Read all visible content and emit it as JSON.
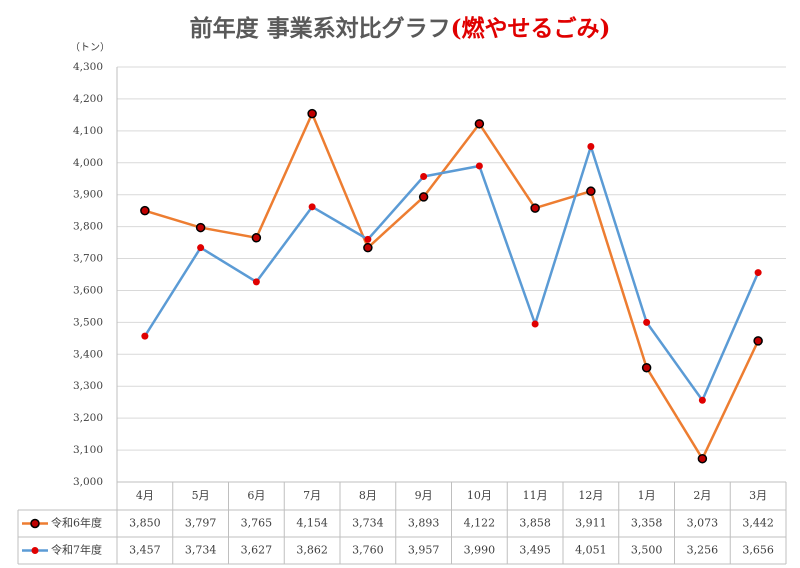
{
  "chart_data": {
    "type": "line",
    "title_parts": [
      "前年度 事業系対比グラフ",
      "(燃やせるごみ)"
    ],
    "y_unit": "（トン）",
    "categories": [
      "4月",
      "5月",
      "6月",
      "7月",
      "8月",
      "9月",
      "10月",
      "11月",
      "12月",
      "1月",
      "2月",
      "3月"
    ],
    "series": [
      {
        "name": "令和6年度",
        "color": "#ED7D31",
        "values": [
          3850,
          3797,
          3765,
          4154,
          3734,
          3893,
          4122,
          3858,
          3911,
          3358,
          3073,
          3442
        ],
        "value_labels": [
          "3,850",
          "3,797",
          "3,765",
          "4,154",
          "3,734",
          "3,893",
          "4,122",
          "3,858",
          "3,911",
          "3,358",
          "3,073",
          "3,442"
        ]
      },
      {
        "name": "令和7年度",
        "color": "#5B9BD5",
        "values": [
          3457,
          3734,
          3627,
          3862,
          3760,
          3957,
          3990,
          3495,
          4051,
          3500,
          3256,
          3656
        ],
        "value_labels": [
          "3,457",
          "3,734",
          "3,627",
          "3,862",
          "3,760",
          "3,957",
          "3,990",
          "3,495",
          "4,051",
          "3,500",
          "3,256",
          "3,656"
        ]
      }
    ],
    "ylim": [
      3000,
      4300
    ],
    "yticks": [
      {
        "value": 3000,
        "label": "3,000"
      },
      {
        "value": 3100,
        "label": "3,100"
      },
      {
        "value": 3200,
        "label": "3,200"
      },
      {
        "value": 3300,
        "label": "3,300"
      },
      {
        "value": 3400,
        "label": "3,400"
      },
      {
        "value": 3500,
        "label": "3,500"
      },
      {
        "value": 3600,
        "label": "3,600"
      },
      {
        "value": 3700,
        "label": "3,700"
      },
      {
        "value": 3800,
        "label": "3,800"
      },
      {
        "value": 3900,
        "label": "3,900"
      },
      {
        "value": 4000,
        "label": "4,000"
      },
      {
        "value": 4100,
        "label": "4,100"
      },
      {
        "value": 4200,
        "label": "4,200"
      },
      {
        "value": 4300,
        "label": "4,300"
      }
    ],
    "grid": true
  }
}
